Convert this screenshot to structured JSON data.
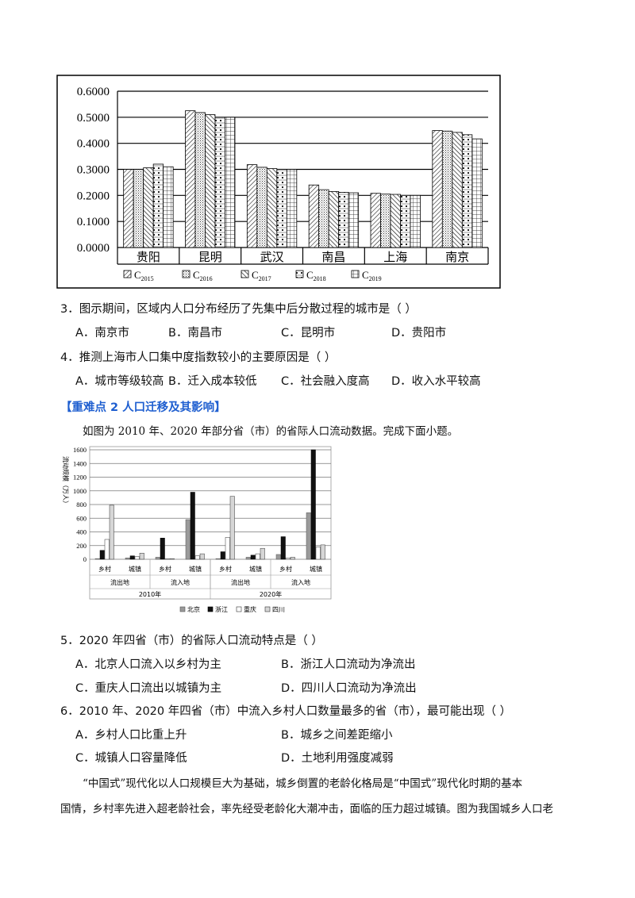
{
  "chart1": {
    "chart_data": {
      "type": "bar",
      "categories": [
        "贵阳",
        "昆明",
        "武汉",
        "南昌",
        "上海",
        "南京"
      ],
      "series": [
        {
          "name": "C2015",
          "values": [
            0.3,
            0.525,
            0.318,
            0.24,
            0.208,
            0.449
          ]
        },
        {
          "name": "C2016",
          "values": [
            0.3,
            0.518,
            0.308,
            0.222,
            0.205,
            0.447
          ]
        },
        {
          "name": "C2017",
          "values": [
            0.306,
            0.51,
            0.303,
            0.215,
            0.204,
            0.442
          ]
        },
        {
          "name": "C2018",
          "values": [
            0.32,
            0.5,
            0.3,
            0.212,
            0.2,
            0.433
          ]
        },
        {
          "name": "C2019",
          "values": [
            0.31,
            0.5,
            0.3,
            0.21,
            0.2,
            0.417
          ]
        }
      ],
      "yticks": [
        "0.0000",
        "0.1000",
        "0.2000",
        "0.3000",
        "0.4000",
        "0.5000",
        "0.6000"
      ],
      "ylim": [
        0,
        0.6
      ],
      "legend": [
        "C2015",
        "C2016",
        "C2017",
        "C2018",
        "C2019"
      ],
      "legend_placement": "bottom",
      "grid": true
    }
  },
  "q3": {
    "stem": "3．图示期间，区域内人口分布经历了先集中后分散过程的城市是（    ）",
    "a": "A．南京市",
    "b": "B．南昌市",
    "c": "C．昆明市",
    "d": "D．贵阳市"
  },
  "q4": {
    "stem": "4．推测上海市人口集中度指数较小的主要原因是（    ）",
    "a": "A．城市等级较高",
    "b": "B．迁入成本较低",
    "c": "C．社会融入度高",
    "d": "D．收入水平较高"
  },
  "section_title": "【重难点 2  人口迁移及其影响】",
  "intro": "如图为 2010 年、2020 年部分省（市）的省际人口流动数据。完成下面小题。",
  "chart2": {
    "chart_data": {
      "type": "bar",
      "categories": [
        "乡村",
        "城镇",
        "乡村",
        "城镇",
        "乡村",
        "城镇",
        "乡村",
        "城镇"
      ],
      "groups": [
        "流出地",
        "流入地",
        "流出地",
        "流入地"
      ],
      "years": [
        "2010年",
        "2020年"
      ],
      "series": [
        {
          "name": "北京",
          "values": [
            10,
            20,
            30,
            580,
            10,
            30,
            70,
            680
          ]
        },
        {
          "name": "浙江",
          "values": [
            130,
            50,
            310,
            980,
            110,
            60,
            330,
            1600
          ]
        },
        {
          "name": "重庆",
          "values": [
            290,
            40,
            5,
            50,
            320,
            80,
            20,
            180
          ]
        },
        {
          "name": "四川",
          "values": [
            790,
            90,
            10,
            80,
            920,
            160,
            30,
            210
          ]
        }
      ],
      "ylabel": "流动规模（万人）",
      "yticks": [
        "0",
        "200",
        "400",
        "600",
        "800",
        "1000",
        "1200",
        "1400",
        "1600"
      ],
      "ylim": [
        0,
        1600
      ],
      "legend_placement": "bottom"
    }
  },
  "q5": {
    "stem": "5．2020 年四省（市）的省际人口流动特点是（    ）",
    "a": "A．北京人口流入以乡村为主",
    "b": "B．浙江人口流动为净流出",
    "c": "C．重庆人口流出以城镇为主",
    "d": "D．四川人口流动为净流出"
  },
  "q6": {
    "stem": "6．2010 年、2020 年四省（市）中流入乡村人口数量最多的省（市），最可能出现（    ）",
    "a": "A．乡村人口比重上升",
    "b": "B．城乡之间差距缩小",
    "c": "C．城镇人口容量降低",
    "d": "D．土地利用强度减弱"
  },
  "passage": {
    "line1": "“中国式”现代化以人口规模巨大为基础，城乡倒置的老龄化格局是“中国式”现代化时期的基本",
    "line2": "国情，乡村率先进入超老龄社会，率先经受老龄化大潮冲击，面临的压力超过城镇。图为我国城乡人口老"
  }
}
